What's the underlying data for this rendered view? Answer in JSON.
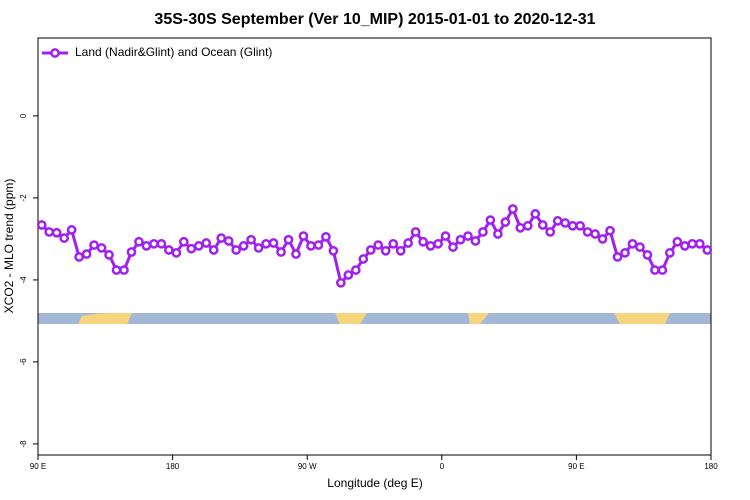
{
  "chart_data": {
    "type": "line",
    "title": "35S-30S September (Ver 10_MIP)   2015-01-01 to 2020-12-31",
    "xlabel": "Longitude (deg E)",
    "ylabel": "XCO2 - MLO trend (ppm)",
    "xlim": [
      90,
      540
    ],
    "xticks": [
      {
        "value": 90,
        "label": "90 E"
      },
      {
        "value": 180,
        "label": "180"
      },
      {
        "value": 270,
        "label": "90 W"
      },
      {
        "value": 360,
        "label": "0"
      },
      {
        "value": 450,
        "label": "90 E"
      },
      {
        "value": 540,
        "label": "180"
      }
    ],
    "ylim": [
      -8.27,
      1.9
    ],
    "yticks": [
      0,
      -2,
      -4,
      -6,
      -8
    ],
    "legend": "top-left",
    "x": [
      92.5,
      97.5,
      102.5,
      107.5,
      112.5,
      117.5,
      122.5,
      127.5,
      132.5,
      137.5,
      142.5,
      147.5,
      152.5,
      157.5,
      162.5,
      167.5,
      172.5,
      177.5,
      182.5,
      187.5,
      192.5,
      197.5,
      202.5,
      207.5,
      212.5,
      217.5,
      222.5,
      227.5,
      232.5,
      237.5,
      242.5,
      247.5,
      252.5,
      257.5,
      262.5,
      267.5,
      272.5,
      277.5,
      282.5,
      287.5,
      292.5,
      297.5,
      302.5,
      307.5,
      312.5,
      317.5,
      322.5,
      327.5,
      332.5,
      337.5,
      342.5,
      347.5,
      352.5,
      357.5,
      362.5,
      367.5,
      372.5,
      377.5,
      382.5,
      387.5,
      392.5,
      397.5,
      402.5,
      407.5,
      412.5,
      417.5,
      422.5,
      427.5,
      432.5,
      437.5,
      442.5,
      447.5,
      452.5,
      457.5,
      462.5,
      467.5,
      472.5,
      477.5,
      482.5,
      487.5,
      492.5,
      497.5,
      502.5,
      507.5,
      512.5,
      517.5,
      522.5,
      527.5,
      532.5,
      537.5
    ],
    "series": [
      {
        "name": "Land (Nadir&Glint) and Ocean (Glint)",
        "color": "#a020f0",
        "values": [
          -2.66,
          -2.83,
          -2.85,
          -2.98,
          -2.78,
          -3.44,
          -3.37,
          -3.15,
          -3.22,
          -3.39,
          -3.76,
          -3.76,
          -3.32,
          -3.07,
          -3.17,
          -3.12,
          -3.12,
          -3.27,
          -3.34,
          -3.07,
          -3.24,
          -3.17,
          -3.1,
          -3.27,
          -2.98,
          -3.05,
          -3.27,
          -3.17,
          -3.02,
          -3.22,
          -3.12,
          -3.1,
          -3.32,
          -3.02,
          -3.37,
          -2.93,
          -3.17,
          -3.15,
          -2.95,
          -3.29,
          -4.07,
          -3.88,
          -3.76,
          -3.49,
          -3.27,
          -3.15,
          -3.29,
          -3.12,
          -3.29,
          -3.1,
          -2.83,
          -3.07,
          -3.17,
          -3.12,
          -2.93,
          -3.2,
          -3.02,
          -2.93,
          -3.05,
          -2.83,
          -2.54,
          -2.88,
          -2.59,
          -2.27,
          -2.73,
          -2.68,
          -2.39,
          -2.66,
          -2.83,
          -2.56,
          -2.61,
          -2.68,
          -2.68,
          -2.83,
          -2.88,
          -3.0,
          -2.8,
          -3.44,
          -3.34,
          -3.12,
          -3.2,
          -3.39,
          -3.76,
          -3.76,
          -3.34,
          -3.07,
          -3.17,
          -3.12,
          -3.12,
          -3.27
        ]
      }
    ]
  }
}
